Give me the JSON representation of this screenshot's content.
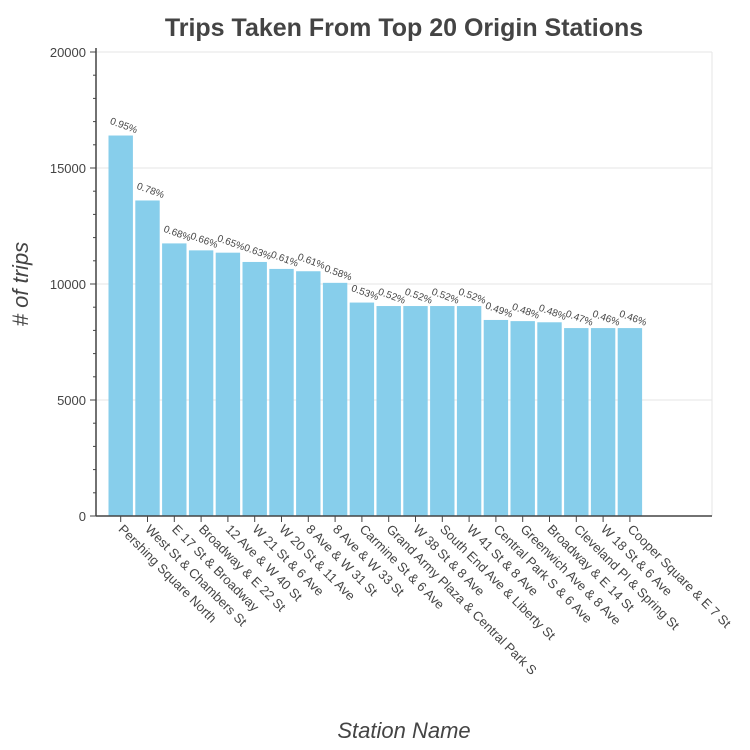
{
  "chart_data": {
    "type": "bar",
    "title": "Trips Taken From Top 20 Origin Stations",
    "xlabel": "Station Name",
    "ylabel": "# of trips",
    "ylim": [
      0,
      20000
    ],
    "yticks": [
      "0",
      "5000",
      "10000",
      "15000",
      "20000"
    ],
    "grid": true,
    "bar_color": "#87ceeb",
    "categories": [
      "Pershing Square North",
      "West St & Chambers St",
      "E 17 St & Broadway",
      "Broadway & E 22 St",
      "12 Ave & W 40 St",
      "W 21 St & 6 Ave",
      "W 20 St & 11 Ave",
      "8 Ave & W 31 St",
      "8 Ave & W 33 St",
      "Carmine St & 6 Ave",
      "Grand Army Plaza & Central Park S",
      "W 38 St & 8 Ave",
      "South End Ave & Liberty St",
      "W 41 St & 8 Ave",
      "Central Park S & 6 Ave",
      "Greenwich Ave & 8 Ave",
      "Broadway & E 14 St",
      "Cleveland Pl & Spring St",
      "W 18 St & 6 Ave",
      "Cooper Square & E 7 St"
    ],
    "values": [
      16400,
      13600,
      11750,
      11450,
      11350,
      10950,
      10650,
      10550,
      10050,
      9200,
      9050,
      9050,
      9050,
      9050,
      8450,
      8400,
      8350,
      8100,
      8100,
      8100
    ],
    "data_labels": [
      "0.95%",
      "0.78%",
      "0.68%",
      "0.66%",
      "0.65%",
      "0.63%",
      "0.61%",
      "0.61%",
      "0.58%",
      "0.53%",
      "0.52%",
      "0.52%",
      "0.52%",
      "0.52%",
      "0.49%",
      "0.48%",
      "0.48%",
      "0.47%",
      "0.46%",
      "0.46%"
    ]
  }
}
